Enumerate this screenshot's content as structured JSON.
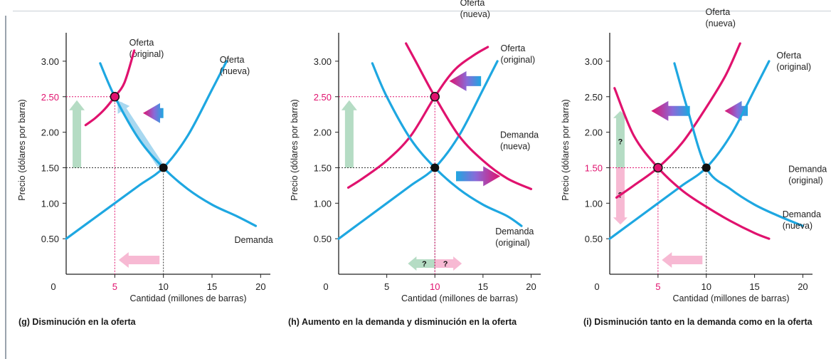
{
  "chart_data": [
    {
      "type": "line",
      "caption": "(g) Disminución en la oferta",
      "xlabel": "Cantidad (millones de barras)",
      "ylabel": "Precio (dólares por barra)",
      "xlim": [
        0,
        21
      ],
      "ylim": [
        0,
        3.3
      ],
      "x_ticks": [
        "0",
        "5",
        "10",
        "15",
        "20"
      ],
      "y_ticks": [
        "0.50",
        "1.00",
        "1.50",
        "2.00",
        "2.50",
        "3.00"
      ],
      "highlight_x": "5",
      "highlight_y": "2.50",
      "series": [
        {
          "name_lines": [
            "Oferta",
            "(original)"
          ],
          "color": "#1ea7e1",
          "x": [
            0,
            2.5,
            5,
            7.5,
            10,
            12.5,
            15,
            16.5
          ],
          "y": [
            0.5,
            0.75,
            1.0,
            1.25,
            1.5,
            1.95,
            2.6,
            3.0
          ]
        },
        {
          "name_lines": [
            "Oferta",
            "(nueva)"
          ],
          "color": "#e0126e",
          "x": [
            2,
            3,
            4,
            5,
            6,
            7
          ],
          "y": [
            2.1,
            2.2,
            2.33,
            2.5,
            2.7,
            3.15
          ]
        },
        {
          "name_lines": [
            "Demanda"
          ],
          "color": "#1ea7e1",
          "x": [
            3.5,
            5,
            7.5,
            10,
            12.5,
            15,
            17.5,
            19.5
          ],
          "y": [
            2.97,
            2.5,
            1.9,
            1.5,
            1.2,
            0.98,
            0.82,
            0.68
          ]
        }
      ],
      "equilibria": [
        {
          "x": 10,
          "y": 1.5,
          "style": "filled"
        },
        {
          "x": 5,
          "y": 2.5,
          "style": "magenta"
        }
      ],
      "guides": [
        {
          "x": 10,
          "y": 1.5,
          "color": "#333333"
        },
        {
          "x": 5,
          "y": 2.5,
          "color": "#e0126e"
        }
      ],
      "arrows": [
        {
          "kind": "shift",
          "from": [
            10,
            2.27
          ],
          "to": [
            7.9,
            2.27
          ],
          "color": "#e0126e"
        },
        {
          "kind": "axis-up",
          "x": 1.1,
          "from": 1.5,
          "to": 2.45,
          "color": "#b5dcc4"
        },
        {
          "kind": "axis-left",
          "y": 0.2,
          "from": 9.6,
          "to": 5.4,
          "color": "#f7b9d3"
        },
        {
          "kind": "along-curve",
          "from": [
            9.6,
            1.55
          ],
          "to": [
            5.6,
            2.38
          ],
          "color": "#a8d8f0"
        }
      ]
    },
    {
      "type": "line",
      "caption": "(h) Aumento en la demanda y disminución en la oferta",
      "xlabel": "Cantidad (millones de barras)",
      "ylabel": "Precio (dólares por barra)",
      "xlim": [
        0,
        21
      ],
      "ylim": [
        0,
        3.3
      ],
      "x_ticks": [
        "0",
        "5",
        "10",
        "15",
        "20"
      ],
      "y_ticks": [
        "0.50",
        "1.00",
        "1.50",
        "2.00",
        "2.50",
        "3.00"
      ],
      "highlight_x": "10",
      "highlight_y": "2.50",
      "series": [
        {
          "name_lines": [
            "Oferta",
            "(original)"
          ],
          "color": "#1ea7e1",
          "x": [
            0,
            2.5,
            5,
            7.5,
            10,
            12.5,
            15,
            16.5
          ],
          "y": [
            0.5,
            0.75,
            1.0,
            1.25,
            1.5,
            1.95,
            2.6,
            3.0
          ]
        },
        {
          "name_lines": [
            "Oferta",
            "(nueva)"
          ],
          "color": "#e0126e",
          "x": [
            1,
            2.5,
            5,
            7.5,
            10,
            12,
            14,
            15.5
          ],
          "y": [
            1.22,
            1.35,
            1.6,
            1.95,
            2.5,
            2.87,
            3.08,
            3.2
          ]
        },
        {
          "name_lines": [
            "Demanda",
            "(original)"
          ],
          "color": "#1ea7e1",
          "x": [
            3.5,
            5,
            7.5,
            10,
            12.5,
            15,
            17.5,
            19
          ],
          "y": [
            2.97,
            2.5,
            1.9,
            1.5,
            1.2,
            0.98,
            0.82,
            0.68
          ]
        },
        {
          "name_lines": [
            "Demanda",
            "(nueva)"
          ],
          "color": "#e0126e",
          "x": [
            7,
            8,
            10,
            12.5,
            15,
            17.5,
            20
          ],
          "y": [
            3.25,
            3.0,
            2.5,
            1.95,
            1.6,
            1.35,
            1.2
          ]
        }
      ],
      "equilibria": [
        {
          "x": 10,
          "y": 1.5,
          "style": "filled"
        },
        {
          "x": 10,
          "y": 2.5,
          "style": "magenta"
        }
      ],
      "guides": [
        {
          "x": 10,
          "y": 1.5,
          "color": "#333333"
        },
        {
          "x": 10,
          "y": 2.5,
          "color": "#e0126e"
        }
      ],
      "arrows": [
        {
          "kind": "shift",
          "from": [
            14.8,
            2.72
          ],
          "to": [
            11.5,
            2.72
          ],
          "color": "#e0126e"
        },
        {
          "kind": "shift",
          "from": [
            12.2,
            1.38
          ],
          "to": [
            16.8,
            1.38
          ],
          "color": "#e0126e"
        },
        {
          "kind": "axis-up",
          "x": 1.1,
          "from": 1.5,
          "to": 2.45,
          "color": "#b5dcc4"
        },
        {
          "kind": "axis-both",
          "y": 0.15,
          "from": 10,
          "left": 7.2,
          "right": 12.8,
          "label": "?",
          "colors": [
            "#b5dcc4",
            "#f7b9d3"
          ]
        }
      ]
    },
    {
      "type": "line",
      "caption": "(i) Disminución tanto en la demanda como en la oferta",
      "xlabel": "Cantidad (millones de barras)",
      "ylabel": "Precio (dólares por barra)",
      "xlim": [
        0,
        21
      ],
      "ylim": [
        0,
        3.3
      ],
      "x_ticks": [
        "0",
        "5",
        "10",
        "15",
        "20"
      ],
      "y_ticks": [
        "0.50",
        "1.00",
        "1.50",
        "2.00",
        "2.50",
        "3.00"
      ],
      "highlight_x": "5",
      "highlight_y": "1.50",
      "series": [
        {
          "name_lines": [
            "Oferta",
            "(original)"
          ],
          "color": "#1ea7e1",
          "x": [
            0,
            2.5,
            5,
            7.5,
            10,
            12.5,
            15,
            16.5
          ],
          "y": [
            0.5,
            0.75,
            1.0,
            1.25,
            1.5,
            1.95,
            2.6,
            3.0
          ]
        },
        {
          "name_lines": [
            "Oferta",
            "(nueva)"
          ],
          "color": "#e0126e",
          "x": [
            0.7,
            2.5,
            5,
            7.5,
            10,
            12,
            13.5
          ],
          "y": [
            1.08,
            1.25,
            1.5,
            1.85,
            2.35,
            2.8,
            3.25
          ]
        },
        {
          "name_lines": [
            "Demanda",
            "(original)"
          ],
          "color": "#1ea7e1",
          "x": [
            6.7,
            8,
            10,
            12.5,
            15,
            17.5,
            20
          ],
          "y": [
            2.97,
            2.35,
            1.5,
            1.2,
            0.98,
            0.82,
            0.68
          ]
        },
        {
          "name_lines": [
            "Demanda",
            "(nueva)"
          ],
          "color": "#e0126e",
          "x": [
            0.5,
            2.5,
            5,
            7.5,
            10,
            12.5,
            15,
            16.5
          ],
          "y": [
            2.62,
            1.95,
            1.5,
            1.18,
            0.95,
            0.75,
            0.58,
            0.5
          ]
        }
      ],
      "equilibria": [
        {
          "x": 10,
          "y": 1.5,
          "style": "filled"
        },
        {
          "x": 5,
          "y": 1.5,
          "style": "magenta"
        }
      ],
      "guides": [
        {
          "x": 10,
          "y": 1.5,
          "color": "#333333"
        },
        {
          "x": 5,
          "y": 1.5,
          "color": "#e0126e"
        }
      ],
      "arrows": [
        {
          "kind": "shift",
          "from": [
            8.3,
            2.3
          ],
          "to": [
            4.3,
            2.3
          ],
          "color": "#e0126e"
        },
        {
          "kind": "shift",
          "from": [
            14.3,
            2.3
          ],
          "to": [
            11.9,
            2.3
          ],
          "color": "#e0126e"
        },
        {
          "kind": "axis-left",
          "y": 0.2,
          "from": 9.6,
          "to": 5.4,
          "color": "#f7b9d3"
        },
        {
          "kind": "axis-vboth",
          "x": 1.1,
          "from": 1.5,
          "up": 2.3,
          "down": 0.7,
          "label": "?",
          "colors": [
            "#b5dcc4",
            "#f7b9d3"
          ]
        }
      ]
    }
  ]
}
